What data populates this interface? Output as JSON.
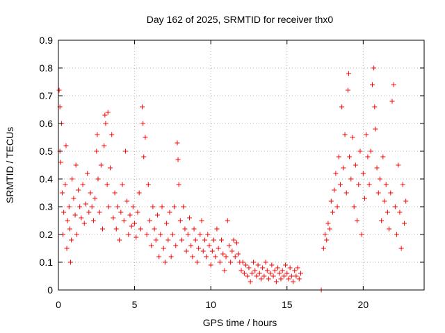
{
  "chart_data": {
    "type": "scatter",
    "title": "Day 162 of 2025, SRMTID for receiver thx0",
    "xlabel": "GPS time / hours",
    "ylabel": "SRMTID / TECUs",
    "xlim": [
      0,
      24
    ],
    "ylim": [
      0,
      0.9
    ],
    "xticks": [
      0,
      5,
      10,
      15,
      20
    ],
    "xtick_labels": [
      "0",
      "5",
      "10",
      "15",
      "20"
    ],
    "yticks": [
      0,
      0.1,
      0.2,
      0.3,
      0.4,
      0.5,
      0.6,
      0.7,
      0.8,
      0.9
    ],
    "ytick_labels": [
      "0",
      "0.1",
      "0.2",
      "0.3",
      "0.4",
      "0.5",
      "0.6",
      "0.7",
      "0.8",
      "0.9"
    ],
    "grid": true,
    "marker": "+",
    "color": "#ff0000",
    "series": [
      {
        "name": "SRMTID",
        "points": [
          [
            0.05,
            0.72
          ],
          [
            0.1,
            0.66
          ],
          [
            0.1,
            0.5
          ],
          [
            0.15,
            0.46
          ],
          [
            0.2,
            0.6
          ],
          [
            0.25,
            0.35
          ],
          [
            0.3,
            0.2
          ],
          [
            0.35,
            0.28
          ],
          [
            0.45,
            0.38
          ],
          [
            0.5,
            0.52
          ],
          [
            0.55,
            0.15
          ],
          [
            0.6,
            0.25
          ],
          [
            0.7,
            0.3
          ],
          [
            0.75,
            0.22
          ],
          [
            0.8,
            0.1
          ],
          [
            0.85,
            0.18
          ],
          [
            0.9,
            0.4
          ],
          [
            1.0,
            0.33
          ],
          [
            1.1,
            0.27
          ],
          [
            1.15,
            0.45
          ],
          [
            1.2,
            0.2
          ],
          [
            1.3,
            0.36
          ],
          [
            1.4,
            0.3
          ],
          [
            1.5,
            0.26
          ],
          [
            1.6,
            0.38
          ],
          [
            1.7,
            0.24
          ],
          [
            1.8,
            0.31
          ],
          [
            1.9,
            0.42
          ],
          [
            2.0,
            0.28
          ],
          [
            2.1,
            0.35
          ],
          [
            2.2,
            0.3
          ],
          [
            2.3,
            0.25
          ],
          [
            2.4,
            0.33
          ],
          [
            2.5,
            0.5
          ],
          [
            2.55,
            0.56
          ],
          [
            2.6,
            0.4
          ],
          [
            2.7,
            0.28
          ],
          [
            2.8,
            0.45
          ],
          [
            2.9,
            0.22
          ],
          [
            3.0,
            0.52
          ],
          [
            3.05,
            0.63
          ],
          [
            3.1,
            0.6
          ],
          [
            3.2,
            0.38
          ],
          [
            3.25,
            0.64
          ],
          [
            3.3,
            0.3
          ],
          [
            3.4,
            0.44
          ],
          [
            3.5,
            0.56
          ],
          [
            3.6,
            0.26
          ],
          [
            3.7,
            0.35
          ],
          [
            3.8,
            0.22
          ],
          [
            3.9,
            0.3
          ],
          [
            4.0,
            0.18
          ],
          [
            4.1,
            0.28
          ],
          [
            4.2,
            0.38
          ],
          [
            4.3,
            0.25
          ],
          [
            4.4,
            0.5
          ],
          [
            4.5,
            0.32
          ],
          [
            4.6,
            0.2
          ],
          [
            4.7,
            0.27
          ],
          [
            4.8,
            0.23
          ],
          [
            4.9,
            0.3
          ],
          [
            5.0,
            0.24
          ],
          [
            5.1,
            0.19
          ],
          [
            5.2,
            0.28
          ],
          [
            5.3,
            0.35
          ],
          [
            5.4,
            0.22
          ],
          [
            5.5,
            0.66
          ],
          [
            5.55,
            0.6
          ],
          [
            5.6,
            0.48
          ],
          [
            5.7,
            0.55
          ],
          [
            5.8,
            0.2
          ],
          [
            5.9,
            0.38
          ],
          [
            6.0,
            0.25
          ],
          [
            6.1,
            0.16
          ],
          [
            6.2,
            0.3
          ],
          [
            6.3,
            0.22
          ],
          [
            6.4,
            0.18
          ],
          [
            6.5,
            0.27
          ],
          [
            6.6,
            0.12
          ],
          [
            6.7,
            0.2
          ],
          [
            6.8,
            0.3
          ],
          [
            6.9,
            0.15
          ],
          [
            7.0,
            0.1
          ],
          [
            7.1,
            0.24
          ],
          [
            7.2,
            0.18
          ],
          [
            7.3,
            0.28
          ],
          [
            7.4,
            0.12
          ],
          [
            7.5,
            0.2
          ],
          [
            7.6,
            0.3
          ],
          [
            7.7,
            0.16
          ],
          [
            7.8,
            0.53
          ],
          [
            7.85,
            0.47
          ],
          [
            7.9,
            0.38
          ],
          [
            8.0,
            0.25
          ],
          [
            8.1,
            0.18
          ],
          [
            8.2,
            0.3
          ],
          [
            8.3,
            0.22
          ],
          [
            8.4,
            0.14
          ],
          [
            8.5,
            0.2
          ],
          [
            8.6,
            0.26
          ],
          [
            8.7,
            0.16
          ],
          [
            8.8,
            0.12
          ],
          [
            8.9,
            0.22
          ],
          [
            9.0,
            0.18
          ],
          [
            9.1,
            0.1
          ],
          [
            9.2,
            0.15
          ],
          [
            9.3,
            0.2
          ],
          [
            9.4,
            0.25
          ],
          [
            9.5,
            0.14
          ],
          [
            9.6,
            0.18
          ],
          [
            9.7,
            0.12
          ],
          [
            9.8,
            0.2
          ],
          [
            9.9,
            0.16
          ],
          [
            10.0,
            0.09
          ],
          [
            10.1,
            0.14
          ],
          [
            10.2,
            0.18
          ],
          [
            10.3,
            0.12
          ],
          [
            10.4,
            0.22
          ],
          [
            10.5,
            0.15
          ],
          [
            10.6,
            0.1
          ],
          [
            10.7,
            0.18
          ],
          [
            10.8,
            0.13
          ],
          [
            10.9,
            0.07
          ],
          [
            11.0,
            0.12
          ],
          [
            11.1,
            0.25
          ],
          [
            11.2,
            0.16
          ],
          [
            11.3,
            0.1
          ],
          [
            11.4,
            0.14
          ],
          [
            11.5,
            0.18
          ],
          [
            11.6,
            0.12
          ],
          [
            11.7,
            0.17
          ],
          [
            11.8,
            0.13
          ],
          [
            11.9,
            0.1
          ],
          [
            12.0,
            0.07
          ],
          [
            12.1,
            0.1
          ],
          [
            12.2,
            0.06
          ],
          [
            12.3,
            0.09
          ],
          [
            12.4,
            0.05
          ],
          [
            12.5,
            0.08
          ],
          [
            12.6,
            0.03
          ],
          [
            12.7,
            0.06
          ],
          [
            12.8,
            0.1
          ],
          [
            12.9,
            0.07
          ],
          [
            13.0,
            0.05
          ],
          [
            13.1,
            0.09
          ],
          [
            13.2,
            0.06
          ],
          [
            13.3,
            0.04
          ],
          [
            13.4,
            0.08
          ],
          [
            13.5,
            0.05
          ],
          [
            13.6,
            0.1
          ],
          [
            13.7,
            0.07
          ],
          [
            13.8,
            0.04
          ],
          [
            13.9,
            0.06
          ],
          [
            14.0,
            0.09
          ],
          [
            14.1,
            0.05
          ],
          [
            14.2,
            0.07
          ],
          [
            14.3,
            0.03
          ],
          [
            14.4,
            0.08
          ],
          [
            14.5,
            0.06
          ],
          [
            14.6,
            0.04
          ],
          [
            14.7,
            0.07
          ],
          [
            14.8,
            0.05
          ],
          [
            14.9,
            0.09
          ],
          [
            15.0,
            0.06
          ],
          [
            15.1,
            0.04
          ],
          [
            15.2,
            0.08
          ],
          [
            15.3,
            0.05
          ],
          [
            15.4,
            0.03
          ],
          [
            15.5,
            0.07
          ],
          [
            15.6,
            0.05
          ],
          [
            15.7,
            0.08
          ],
          [
            15.8,
            0.04
          ],
          [
            15.9,
            0.06
          ],
          [
            17.25,
            0.0
          ],
          [
            17.4,
            0.15
          ],
          [
            17.5,
            0.2
          ],
          [
            17.6,
            0.18
          ],
          [
            17.7,
            0.24
          ],
          [
            17.8,
            0.22
          ],
          [
            17.9,
            0.32
          ],
          [
            18.0,
            0.28
          ],
          [
            18.1,
            0.36
          ],
          [
            18.2,
            0.42
          ],
          [
            18.3,
            0.3
          ],
          [
            18.4,
            0.48
          ],
          [
            18.5,
            0.38
          ],
          [
            18.6,
            0.66
          ],
          [
            18.7,
            0.44
          ],
          [
            18.8,
            0.56
          ],
          [
            18.9,
            0.35
          ],
          [
            19.0,
            0.72
          ],
          [
            19.05,
            0.78
          ],
          [
            19.1,
            0.48
          ],
          [
            19.2,
            0.4
          ],
          [
            19.3,
            0.55
          ],
          [
            19.4,
            0.3
          ],
          [
            19.5,
            0.45
          ],
          [
            19.6,
            0.25
          ],
          [
            19.7,
            0.38
          ],
          [
            19.8,
            0.5
          ],
          [
            19.9,
            0.2
          ],
          [
            20.0,
            0.42
          ],
          [
            20.1,
            0.33
          ],
          [
            20.2,
            0.56
          ],
          [
            20.3,
            0.48
          ],
          [
            20.4,
            0.38
          ],
          [
            20.5,
            0.5
          ],
          [
            20.6,
            0.74
          ],
          [
            20.7,
            0.8
          ],
          [
            20.75,
            0.66
          ],
          [
            20.8,
            0.58
          ],
          [
            20.9,
            0.44
          ],
          [
            21.0,
            0.35
          ],
          [
            21.1,
            0.4
          ],
          [
            21.2,
            0.25
          ],
          [
            21.3,
            0.48
          ],
          [
            21.4,
            0.32
          ],
          [
            21.5,
            0.38
          ],
          [
            21.6,
            0.28
          ],
          [
            21.7,
            0.22
          ],
          [
            21.8,
            0.35
          ],
          [
            21.9,
            0.68
          ],
          [
            22.0,
            0.74
          ],
          [
            22.1,
            0.3
          ],
          [
            22.2,
            0.2
          ],
          [
            22.3,
            0.45
          ],
          [
            22.4,
            0.28
          ],
          [
            22.5,
            0.15
          ],
          [
            22.6,
            0.38
          ],
          [
            22.7,
            0.24
          ],
          [
            22.8,
            0.32
          ]
        ]
      }
    ]
  }
}
